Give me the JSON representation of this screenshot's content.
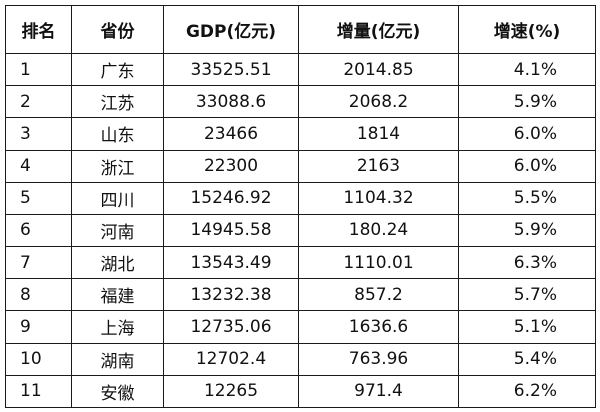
{
  "table": {
    "headers": {
      "rank": "排名",
      "province": "省份",
      "gdp": "GDP(亿元)",
      "increase": "增量(亿元)",
      "growth": "增速(%)"
    },
    "rows": [
      {
        "rank": "1",
        "province": "广东",
        "gdp": "33525.51",
        "increase": "2014.85",
        "growth": "4.1%"
      },
      {
        "rank": "2",
        "province": "江苏",
        "gdp": "33088.6",
        "increase": "2068.2",
        "growth": "5.9%"
      },
      {
        "rank": "3",
        "province": "山东",
        "gdp": "23466",
        "increase": "1814",
        "growth": "6.0%"
      },
      {
        "rank": "4",
        "province": "浙江",
        "gdp": "22300",
        "increase": "2163",
        "growth": "6.0%"
      },
      {
        "rank": "5",
        "province": "四川",
        "gdp": "15246.92",
        "increase": "1104.32",
        "growth": "5.5%"
      },
      {
        "rank": "6",
        "province": "河南",
        "gdp": "14945.58",
        "increase": "180.24",
        "growth": "5.9%"
      },
      {
        "rank": "7",
        "province": "湖北",
        "gdp": "13543.49",
        "increase": "1110.01",
        "growth": "6.3%"
      },
      {
        "rank": "8",
        "province": "福建",
        "gdp": "13232.38",
        "increase": "857.2",
        "growth": "5.7%"
      },
      {
        "rank": "9",
        "province": "上海",
        "gdp": "12735.06",
        "increase": "1636.6",
        "growth": "5.1%"
      },
      {
        "rank": "10",
        "province": "湖南",
        "gdp": "12702.4",
        "increase": "763.96",
        "growth": "5.4%"
      },
      {
        "rank": "11",
        "province": "安徽",
        "gdp": "12265",
        "increase": "971.4",
        "growth": "6.2%"
      }
    ]
  }
}
